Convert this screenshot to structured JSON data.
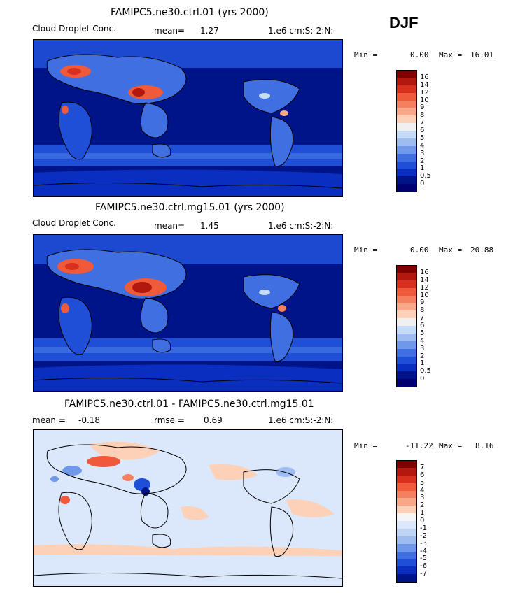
{
  "season": "DJF",
  "panels": [
    {
      "title": "FAMIPC5.ne30.ctrl.01 (yrs 2000)",
      "left_label": "Cloud Droplet Conc.",
      "stat_label": "mean=",
      "stat_value": "1.27",
      "rmse_label": "",
      "rmse_value": "",
      "units": "1.e6 cm:S:-2:N:",
      "min_label": "Min =",
      "min_value": "0.00",
      "max_label": "Max =",
      "max_value": "16.01",
      "colorbar_labels": [
        "16",
        "14",
        "12",
        "10",
        "9",
        "8",
        "7",
        "6",
        "5",
        "4",
        "3",
        "2",
        "1",
        "0.5",
        "0"
      ]
    },
    {
      "title": "FAMIPC5.ne30.ctrl.mg15.01 (yrs 2000)",
      "left_label": "Cloud Droplet Conc.",
      "stat_label": "mean=",
      "stat_value": "1.45",
      "rmse_label": "",
      "rmse_value": "",
      "units": "1.e6 cm:S:-2:N:",
      "min_label": "Min =",
      "min_value": "0.00",
      "max_label": "Max =",
      "max_value": "20.88",
      "colorbar_labels": [
        "16",
        "14",
        "12",
        "10",
        "9",
        "8",
        "7",
        "6",
        "5",
        "4",
        "3",
        "2",
        "1",
        "0.5",
        "0"
      ]
    },
    {
      "title": "FAMIPC5.ne30.ctrl.01 - FAMIPC5.ne30.ctrl.mg15.01",
      "left_label": "mean =",
      "stat_label": "",
      "stat_value": "-0.18",
      "rmse_label": "rmse =",
      "rmse_value": "0.69",
      "units": "1.e6 cm:S:-2:N:",
      "min_label": "Min =",
      "min_value": "-11.22",
      "max_label": "Max =",
      "max_value": "8.16",
      "colorbar_labels": [
        "7",
        "6",
        "5",
        "4",
        "3",
        "2",
        "1",
        "0",
        "-1",
        "-2",
        "-3",
        "-4",
        "-5",
        "-6",
        "-7"
      ]
    }
  ],
  "colors": {
    "abs_scale": [
      "#7f0000",
      "#b2180e",
      "#d7301f",
      "#ef5a3a",
      "#f4805f",
      "#f9a789",
      "#fdd0b8",
      "#f0f0f0",
      "#c6dbf7",
      "#9ebcf2",
      "#6f97ea",
      "#3f6fe0",
      "#1f4fd6",
      "#0a2fc0",
      "#00148a",
      "#000070"
    ],
    "diff_scale": [
      "#7f0000",
      "#b2180e",
      "#d7301f",
      "#ef5a3a",
      "#f4805f",
      "#f9a789",
      "#fdd0b8",
      "#f5f5f5",
      "#dbe8fb",
      "#c0d5f6",
      "#9ebcf2",
      "#6f97ea",
      "#3f6fe0",
      "#1f4fd6",
      "#0a2fc0",
      "#00148a"
    ],
    "ocean_low": "#00148a",
    "ocean_mid": "#1f4fd6",
    "diff_bg": "#dbe8fb"
  }
}
